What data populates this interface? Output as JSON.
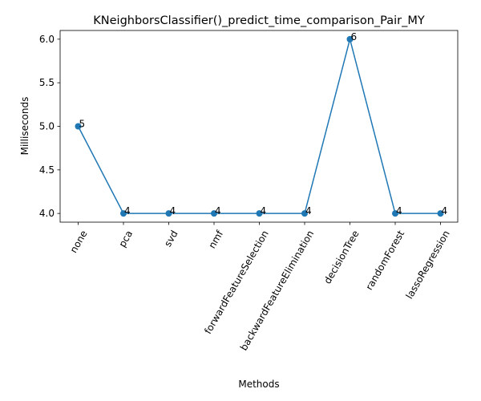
{
  "chart_data": {
    "type": "line",
    "title": "KNeighborsClassifier()_predict_time_comparison_Pair_MY",
    "xlabel": "Methods",
    "ylabel": "Milliseconds",
    "categories": [
      "none",
      "pca",
      "svd",
      "nmf",
      "forwardFeatureSelection",
      "backwardFeatureElimination",
      "decisionTree",
      "randomForest",
      "lassoRegression"
    ],
    "values": [
      5,
      4,
      4,
      4,
      4,
      4,
      6,
      4,
      4
    ],
    "data_labels": [
      "5",
      "4",
      "4",
      "4",
      "4",
      "4",
      "6",
      "4",
      "4"
    ],
    "yticks": [
      4.0,
      4.5,
      5.0,
      5.5,
      6.0
    ],
    "ytick_labels": [
      "4.0",
      "4.5",
      "5.0",
      "5.5",
      "6.0"
    ],
    "ylim": [
      3.9,
      6.1
    ],
    "grid": false,
    "line_color": "#1f77b4",
    "marker": "circle"
  }
}
